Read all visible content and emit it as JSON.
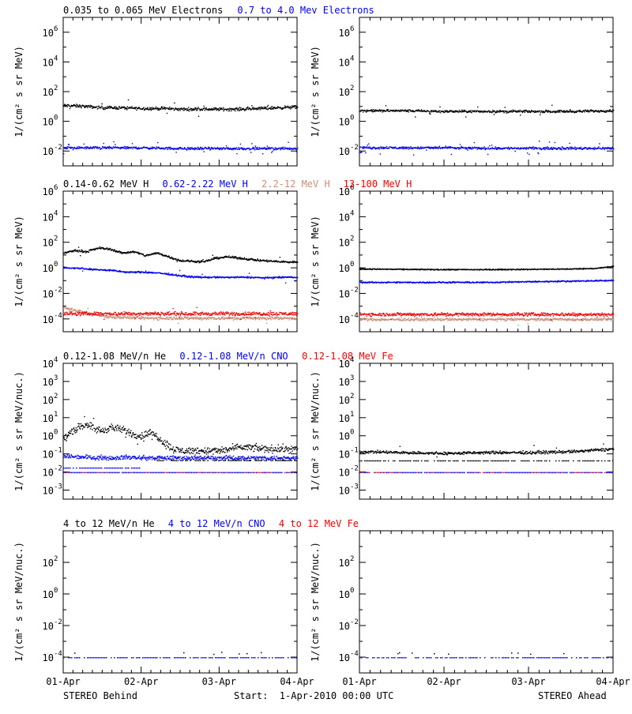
{
  "footer": {
    "left_label": "STEREO Behind",
    "center_label": "Start:  1-Apr-2010 00:00 UTC",
    "right_label": "STEREO Ahead"
  },
  "colors": {
    "black": "#000000",
    "blue": "#0000ee",
    "tan": "#c8907a",
    "red": "#ee0000"
  },
  "chart_data": [
    {
      "id": "electrons",
      "type": "scatter",
      "ylabel": "1/(cm² s sr MeV)",
      "yscale": "log",
      "ylim_exp": [
        -3,
        7
      ],
      "ytick_exps": [
        -2,
        0,
        2,
        4,
        6
      ],
      "xlim_days": [
        0,
        3
      ],
      "xtick_labels": [
        "01-Apr",
        "02-Apr",
        "03-Apr",
        "04-Apr"
      ],
      "legend": [
        {
          "label": "0.035 to 0.065 MeV Electrons",
          "color": "#000000"
        },
        {
          "label": "0.7 to 4.0 Mev Electrons",
          "color": "#0000ee"
        }
      ],
      "behind": [
        {
          "color": "#000000",
          "x": [
            0,
            0.25,
            0.5,
            0.75,
            1,
            1.25,
            1.5,
            1.75,
            2,
            2.25,
            2.5,
            2.75,
            3
          ],
          "y": [
            1.1,
            1.05,
            0.95,
            0.95,
            0.9,
            0.9,
            0.85,
            0.85,
            0.85,
            0.85,
            0.9,
            0.95,
            1.0
          ],
          "scatter": 0.1,
          "outliers": 0.04
        },
        {
          "color": "#0000ee",
          "x": [
            0,
            0.5,
            1,
            1.5,
            2,
            2.5,
            3
          ],
          "y": [
            -1.75,
            -1.75,
            -1.75,
            -1.8,
            -1.8,
            -1.8,
            -1.8
          ],
          "scatter": 0.08,
          "outliers": 0.06
        }
      ],
      "ahead": [
        {
          "color": "#000000",
          "x": [
            0,
            0.5,
            1,
            1.5,
            2,
            2.5,
            3
          ],
          "y": [
            0.75,
            0.75,
            0.7,
            0.7,
            0.7,
            0.7,
            0.75
          ],
          "scatter": 0.08,
          "outliers": 0.02
        },
        {
          "color": "#0000ee",
          "x": [
            0,
            0.5,
            1,
            1.5,
            2,
            2.5,
            3
          ],
          "y": [
            -1.75,
            -1.75,
            -1.75,
            -1.78,
            -1.78,
            -1.78,
            -1.78
          ],
          "scatter": 0.08,
          "outliers": 0.05
        }
      ]
    },
    {
      "id": "protons",
      "type": "scatter",
      "ylabel": "1/(cm² s sr MeV)",
      "yscale": "log",
      "ylim_exp": [
        -5,
        6
      ],
      "ytick_exps": [
        -4,
        -2,
        0,
        2,
        4,
        6
      ],
      "xlim_days": [
        0,
        3
      ],
      "xtick_labels": [
        "01-Apr",
        "02-Apr",
        "03-Apr",
        "04-Apr"
      ],
      "legend": [
        {
          "label": "0.14-0.62 MeV H",
          "color": "#000000"
        },
        {
          "label": "0.62-2.22 MeV H",
          "color": "#0000ee"
        },
        {
          "label": "2.2-12 MeV H",
          "color": "#c8907a"
        },
        {
          "label": "13-100 MeV H",
          "color": "#ee0000"
        }
      ],
      "behind": [
        {
          "color": "#000000",
          "x": [
            0,
            0.15,
            0.3,
            0.45,
            0.6,
            0.75,
            0.9,
            1.05,
            1.2,
            1.35,
            1.5,
            1.65,
            1.8,
            1.95,
            2.1,
            2.25,
            2.4,
            2.55,
            2.7,
            2.85,
            3
          ],
          "y": [
            1.2,
            1.4,
            1.3,
            1.6,
            1.5,
            1.2,
            1.3,
            1.0,
            1.2,
            0.9,
            0.6,
            0.55,
            0.5,
            0.8,
            0.9,
            0.8,
            0.7,
            0.6,
            0.55,
            0.5,
            0.5
          ],
          "scatter": 0.08,
          "outliers": 0.01
        },
        {
          "color": "#0000ee",
          "x": [
            0,
            0.2,
            0.4,
            0.6,
            0.8,
            1.0,
            1.2,
            1.4,
            1.6,
            1.8,
            2.0,
            2.2,
            2.4,
            2.6,
            2.8,
            3
          ],
          "y": [
            0.05,
            0.0,
            -0.1,
            -0.15,
            -0.3,
            -0.3,
            -0.35,
            -0.5,
            -0.65,
            -0.7,
            -0.7,
            -0.7,
            -0.7,
            -0.75,
            -0.7,
            -0.7
          ],
          "scatter": 0.06,
          "outliers": 0.01
        },
        {
          "color": "#c8907a",
          "x": [
            0,
            0.15,
            0.3,
            0.6,
            1,
            1.5,
            2,
            2.5,
            3
          ],
          "y": [
            -3.1,
            -3.3,
            -3.5,
            -3.8,
            -3.9,
            -3.9,
            -3.9,
            -3.9,
            -3.9
          ],
          "scatter": 0.12,
          "outliers": 0.02
        },
        {
          "color": "#ee0000",
          "x": [
            0,
            0.5,
            1,
            1.5,
            2,
            2.5,
            3
          ],
          "y": [
            -3.55,
            -3.55,
            -3.55,
            -3.55,
            -3.55,
            -3.55,
            -3.55
          ],
          "scatter": 0.14,
          "outliers": 0.03
        }
      ],
      "ahead": [
        {
          "color": "#000000",
          "x": [
            0,
            0.5,
            1,
            1.5,
            2,
            2.5,
            2.8,
            3
          ],
          "y": [
            -0.05,
            -0.08,
            -0.1,
            -0.1,
            -0.08,
            -0.05,
            0.0,
            0.15
          ],
          "scatter": 0.04,
          "outliers": 0.0
        },
        {
          "color": "#0000ee",
          "x": [
            0,
            0.5,
            1,
            1.5,
            2,
            2.5,
            3
          ],
          "y": [
            -1.1,
            -1.1,
            -1.1,
            -1.1,
            -1.05,
            -1.0,
            -0.95
          ],
          "scatter": 0.05,
          "outliers": 0.0
        },
        {
          "color": "#c8907a",
          "x": [
            0,
            0.5,
            1,
            1.5,
            2,
            2.5,
            3
          ],
          "y": [
            -4.0,
            -4.0,
            -4.0,
            -4.0,
            -4.0,
            -4.0,
            -4.0
          ],
          "scatter": 0.1,
          "outliers": 0.01
        },
        {
          "color": "#ee0000",
          "x": [
            0,
            0.5,
            1,
            1.5,
            2,
            2.5,
            3
          ],
          "y": [
            -3.6,
            -3.6,
            -3.6,
            -3.6,
            -3.6,
            -3.6,
            -3.6
          ],
          "scatter": 0.13,
          "outliers": 0.02
        }
      ]
    },
    {
      "id": "heavy-low",
      "type": "scatter",
      "ylabel": "1/(cm² s sr MeV/nuc.)",
      "yscale": "log",
      "ylim_exp": [
        -3.5,
        4
      ],
      "ytick_exps": [
        -3,
        -2,
        -1,
        0,
        1,
        2,
        3,
        4
      ],
      "xlim_days": [
        0,
        3
      ],
      "xtick_labels": [
        "01-Apr",
        "02-Apr",
        "03-Apr",
        "04-Apr"
      ],
      "legend": [
        {
          "label": "0.12-1.08 MeV/n He",
          "color": "#000000"
        },
        {
          "label": "0.12-1.08 MeV/n CNO",
          "color": "#0000ee"
        },
        {
          "label": "0.12-1.08 MeV Fe",
          "color": "#ee0000"
        }
      ],
      "behind": [
        {
          "color": "#000000",
          "x": [
            0,
            0.1,
            0.2,
            0.3,
            0.4,
            0.5,
            0.6,
            0.7,
            0.8,
            0.9,
            1.0,
            1.1,
            1.2,
            1.3,
            1.4,
            1.5,
            1.7,
            2.0,
            2.3,
            2.6,
            3
          ],
          "y": [
            -0.2,
            0.3,
            0.5,
            0.7,
            0.4,
            0.3,
            0.5,
            0.4,
            0.3,
            0.1,
            0.0,
            0.2,
            0.0,
            -0.4,
            -0.7,
            -0.8,
            -0.8,
            -0.8,
            -0.6,
            -0.7,
            -0.7
          ],
          "scatter": 0.2,
          "outliers": 0.03
        },
        {
          "color": "#0000ee",
          "x": [
            0,
            0.3,
            0.6,
            0.8,
            1.0
          ],
          "y": [
            -1.1,
            -1.15,
            -1.2,
            -1.15,
            -1.2
          ],
          "scatter": 0.12,
          "outliers": 0.0
        }
      ],
      "behind_levels": [
        {
          "color": "#000000",
          "y_exp": -1.34,
          "x_range": [
            1.2,
            3
          ]
        },
        {
          "color": "#0000ee",
          "y_exp": -1.75,
          "x_range": [
            0,
            1.0
          ]
        },
        {
          "color": "#ee0000",
          "y_exp": -2.0,
          "x_range": [
            0,
            3
          ]
        },
        {
          "color": "#0000ee",
          "y_exp": -2.0,
          "x_range": [
            0,
            3
          ]
        }
      ],
      "ahead": [
        {
          "color": "#000000",
          "x": [
            0,
            0.5,
            1,
            1.5,
            2,
            2.5,
            3
          ],
          "y": [
            -0.85,
            -0.9,
            -0.95,
            -0.9,
            -0.9,
            -0.85,
            -0.7
          ],
          "scatter": 0.08,
          "outliers": 0.01
        }
      ],
      "ahead_levels": [
        {
          "color": "#000000",
          "y_exp": -1.35,
          "x_range": [
            0,
            3
          ]
        },
        {
          "color": "#ee0000",
          "y_exp": -2.0,
          "x_range": [
            0,
            3
          ]
        },
        {
          "color": "#0000ee",
          "y_exp": -2.0,
          "x_range": [
            0,
            3
          ]
        }
      ]
    },
    {
      "id": "heavy-high",
      "type": "scatter",
      "ylabel": "1/(cm² s sr MeV/nuc.)",
      "yscale": "log",
      "ylim_exp": [
        -5,
        4
      ],
      "ytick_exps": [
        -4,
        -2,
        0,
        2
      ],
      "xlim_days": [
        0,
        3
      ],
      "xtick_labels": [
        "01-Apr",
        "02-Apr",
        "03-Apr",
        "04-Apr"
      ],
      "legend": [
        {
          "label": "4 to 12 MeV/n He",
          "color": "#000000"
        },
        {
          "label": "4 to 12 MeV/n CNO",
          "color": "#0000ee"
        },
        {
          "label": "4 to 12 MeV Fe",
          "color": "#ee0000"
        }
      ],
      "behind": [],
      "behind_levels": [
        {
          "color": "#0000ee",
          "y_exp": -4.0,
          "x_range": [
            0,
            3
          ]
        },
        {
          "color": "#000000",
          "y_exp": -3.8,
          "x_range": [
            0,
            3
          ],
          "sparse": true
        }
      ],
      "ahead": [],
      "ahead_levels": [
        {
          "color": "#0000ee",
          "y_exp": -4.0,
          "x_range": [
            0,
            3
          ]
        },
        {
          "color": "#000000",
          "y_exp": -3.8,
          "x_range": [
            0,
            3
          ],
          "sparse": true
        }
      ]
    }
  ]
}
